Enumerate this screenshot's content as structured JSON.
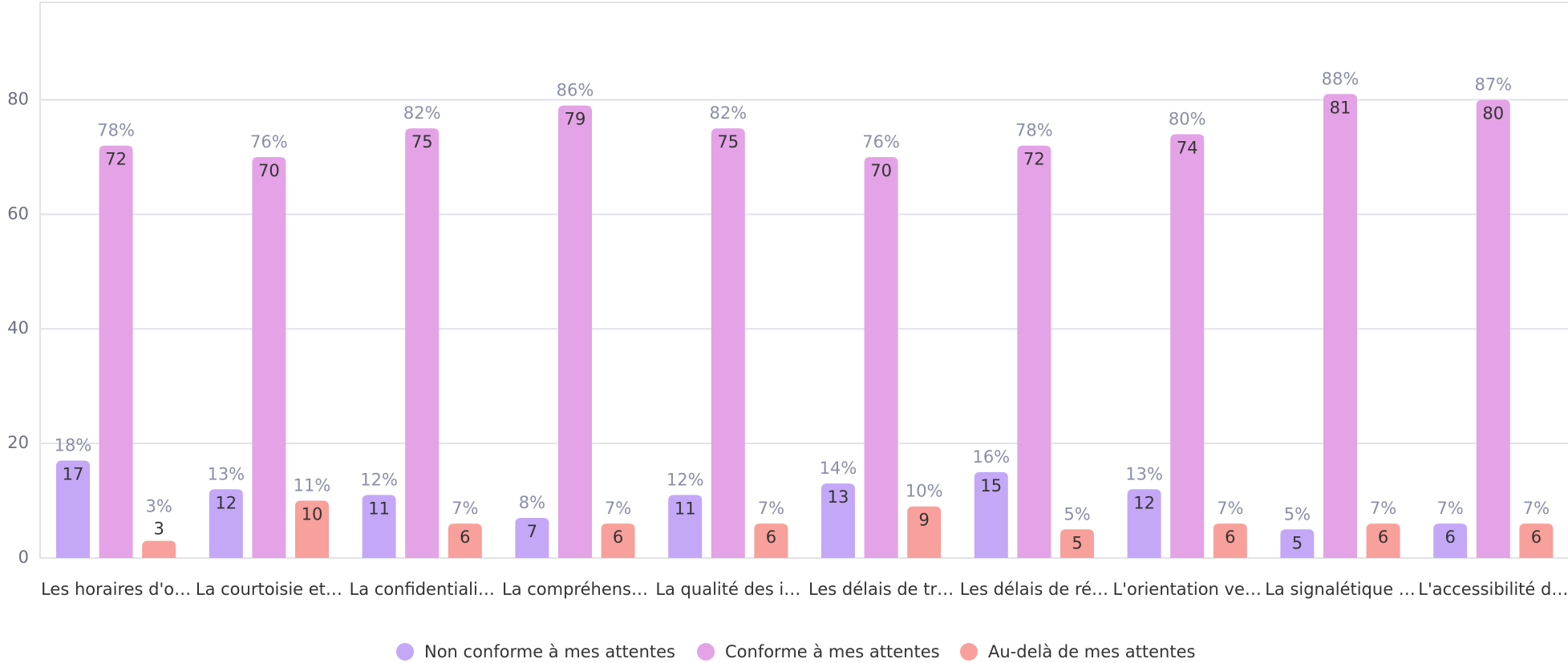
{
  "chart_data": {
    "type": "bar",
    "categories": [
      "Les horaires d'o…",
      "La courtoisie et…",
      "La confidentiali…",
      "La compréhens…",
      "La qualité des i…",
      "Les délais de tr…",
      "Les délais de ré…",
      "L'orientation ve…",
      "La signalétique …",
      "L'accessibilité d…"
    ],
    "series": [
      {
        "name": "Non conforme à mes attentes",
        "color": "#c4a8f7",
        "values": [
          17,
          12,
          11,
          7,
          11,
          13,
          15,
          12,
          5,
          6
        ],
        "percent_labels": [
          "18%",
          "13%",
          "12%",
          "8%",
          "12%",
          "14%",
          "16%",
          "13%",
          "5%",
          "7%"
        ]
      },
      {
        "name": "Conforme à mes attentes",
        "color": "#e3a3e6",
        "values": [
          72,
          70,
          75,
          79,
          75,
          70,
          72,
          74,
          81,
          80
        ],
        "percent_labels": [
          "78%",
          "76%",
          "82%",
          "86%",
          "82%",
          "76%",
          "78%",
          "80%",
          "88%",
          "87%"
        ]
      },
      {
        "name": "Au-delà de mes attentes",
        "color": "#f8a09b",
        "values": [
          3,
          10,
          6,
          6,
          6,
          9,
          5,
          6,
          6,
          6
        ],
        "percent_labels": [
          "3%",
          "11%",
          "7%",
          "7%",
          "7%",
          "10%",
          "5%",
          "7%",
          "7%",
          "7%"
        ]
      }
    ],
    "ylim": [
      0,
      97
    ],
    "yticks": [
      0,
      20,
      40,
      60,
      80
    ],
    "grid": true,
    "legend": "bottom"
  }
}
